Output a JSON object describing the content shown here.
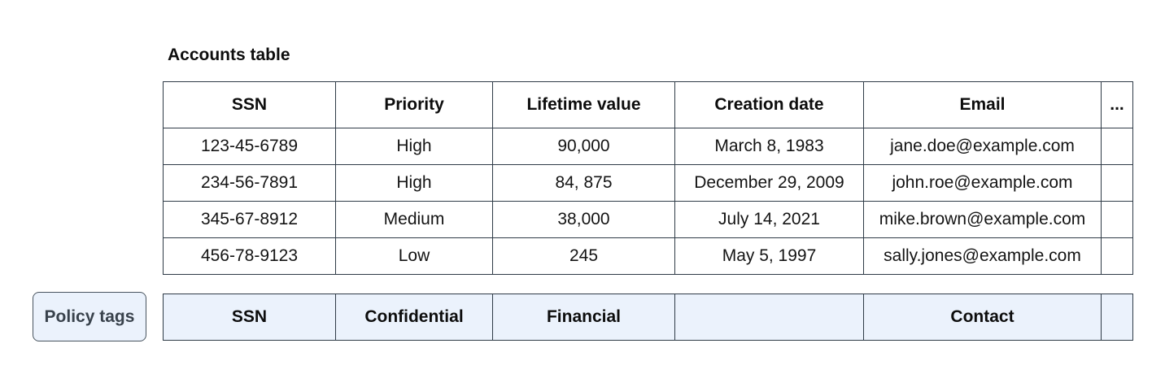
{
  "colors": {
    "border": "#2f3b47",
    "policy-fill": "#ebf2fc",
    "badge-fill": "#ebf2fc",
    "badge-border": "#49545f",
    "badge-text": "#39424c",
    "text": "#121212"
  },
  "accounts_table": {
    "title": "Accounts table",
    "columns": [
      "SSN",
      "Priority",
      "Lifetime value",
      "Creation date",
      "Email",
      "..."
    ],
    "rows": [
      [
        "123-45-6789",
        "High",
        "90,000",
        "March 8, 1983",
        "jane.doe@example.com",
        ""
      ],
      [
        "234-56-7891",
        "High",
        "84, 875",
        "December 29, 2009",
        "john.roe@example.com",
        ""
      ],
      [
        "345-67-8912",
        "Medium",
        "38,000",
        "July 14, 2021",
        "mike.brown@example.com",
        ""
      ],
      [
        "456-78-9123",
        "Low",
        "245",
        "May 5, 1997",
        "sally.jones@example.com",
        ""
      ]
    ]
  },
  "policy_tags": {
    "badge_label": "Policy tags",
    "tags": [
      "SSN",
      "Confidential",
      "Financial",
      "",
      "Contact",
      ""
    ]
  }
}
